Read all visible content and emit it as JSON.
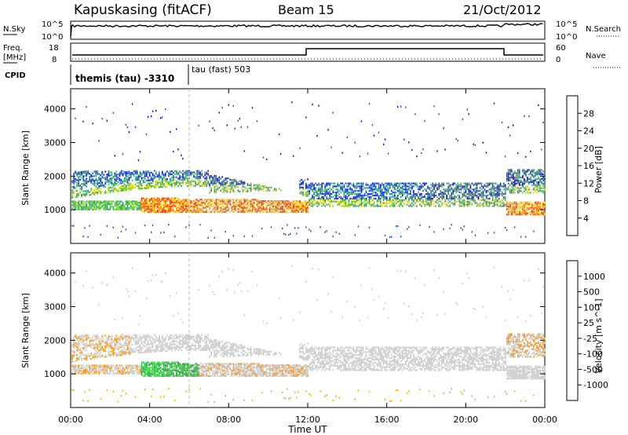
{
  "header": {
    "station": "Kapuskasing (fitACF)",
    "beam": "Beam 15",
    "date": "21/Oct/2012"
  },
  "noise_panel": {
    "left_label": "N.Sky",
    "left_ticks": [
      "10^5",
      "10^0"
    ],
    "right_label": "N.Search",
    "right_ticks": [
      "10^5",
      "10^0"
    ]
  },
  "freq_panel": {
    "left_label_1": "Freq.",
    "left_label_2": "[MHz]",
    "left_ticks": [
      "18",
      "8"
    ],
    "right_label": "Nave",
    "right_ticks": [
      "60",
      "0"
    ]
  },
  "cpid": {
    "label": "CPID",
    "segments": [
      {
        "text": "themis (tau) -3310",
        "start_hour": 0
      },
      {
        "text": "tau (fast) 503",
        "start_hour": 6
      }
    ]
  },
  "colors": {
    "power_scale": [
      "#0000ff",
      "#1f4fb0",
      "#2e8b57",
      "#3cb371",
      "#7fd000",
      "#ffd700",
      "#ff8c00",
      "#ff2a00"
    ],
    "velocity_scale": [
      "#ff0000",
      "#ff8c00",
      "#ffa500",
      "#c8c8c8",
      "#c8c8c8",
      "#32cd32",
      "#2e8b57",
      "#1f4fb0",
      "#0000ff"
    ],
    "gray_scatter": "#c8c8c8"
  },
  "chart_data": [
    {
      "type": "heatmap",
      "name": "power",
      "ylabel": "Slant Range [km]",
      "ylim": [
        0,
        4600
      ],
      "yticks": [
        1000,
        2000,
        3000,
        4000
      ],
      "xlim": [
        0,
        24
      ],
      "colorbar_label": "Power [dB]",
      "colorbar_ticks": [
        "4",
        "8",
        "12",
        "16",
        "20",
        "24",
        "28"
      ],
      "bands": [
        {
          "x": [
            0,
            12
          ],
          "y": [
            1500,
            2100
          ],
          "level": "blue-green"
        },
        {
          "x": [
            3.5,
            12
          ],
          "y": [
            950,
            1350
          ],
          "level": "red-orange"
        },
        {
          "x": [
            12,
            22
          ],
          "y": [
            1100,
            1800
          ],
          "level": "blue-green"
        },
        {
          "x": [
            22,
            24
          ],
          "y": [
            900,
            1300
          ],
          "level": "red-orange"
        }
      ]
    },
    {
      "type": "heatmap",
      "name": "velocity",
      "ylabel": "Slant Range [km]",
      "ylim": [
        0,
        4600
      ],
      "yticks": [
        1000,
        2000,
        3000,
        4000
      ],
      "xlim": [
        0,
        24
      ],
      "xticks": [
        "00:00",
        "04:00",
        "08:00",
        "12:00",
        "16:00",
        "20:00",
        "00:00"
      ],
      "xlabel": "Time UT",
      "colorbar_label": "Velocity [m s^-1]",
      "colorbar_ticks": [
        "1000",
        "500",
        "100",
        "25",
        "-25",
        "-100",
        "-500",
        "-1000"
      ]
    }
  ]
}
